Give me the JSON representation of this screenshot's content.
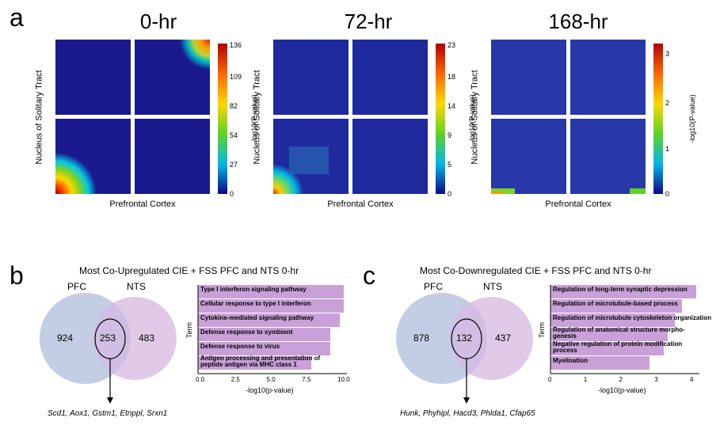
{
  "panel_a": {
    "label": "a",
    "columns": [
      {
        "title": "0-hr",
        "ylabel": "Nucleus of Solitary Tract",
        "xlabel": "Prefrontal Cortex",
        "cbar_label": "-log10(P-value)",
        "cbar_ticks": [
          "0",
          "27",
          "54",
          "82",
          "109",
          "136"
        ],
        "cbar_max": 136
      },
      {
        "title": "72-hr",
        "ylabel": "Nucleus of Solitary Tract",
        "xlabel": "Prefrontal Cortex",
        "cbar_label": "-log10(P-value)",
        "cbar_ticks": [
          "0",
          "5",
          "9",
          "14",
          "18",
          "23"
        ],
        "cbar_max": 23
      },
      {
        "title": "168-hr",
        "ylabel": "Nucleus of Solitary Tract",
        "xlabel": "Prefrontal Cortex",
        "cbar_label": "-log10(P-value)",
        "cbar_ticks": [
          "0",
          "1",
          "2",
          "3"
        ],
        "cbar_max": 3
      }
    ]
  },
  "panel_b": {
    "label": "b",
    "title": "Most Co-Upregulated CIE + FSS PFC and NTS 0-hr",
    "venn": {
      "left_label": "PFC",
      "right_label": "NTS",
      "left_count": "924",
      "overlap_count": "253",
      "right_count": "483",
      "left_color": "#b8c5e0",
      "right_color": "#d5b8e0",
      "genes": "Scd1, Aox1, Gstm1, Etnppl, Srxn1"
    },
    "bars": {
      "xaxis_label": "-log10(p-value)",
      "yaxis_label": "Term",
      "xmax": 10.5,
      "xticks": [
        "0.0",
        "2.5",
        "5.0",
        "7.5",
        "10.0"
      ],
      "items": [
        {
          "label": "Type I interferon signaling pathway",
          "value": 10.3
        },
        {
          "label": "Cellular response to type I interferon",
          "value": 10.3
        },
        {
          "label": "Cytokine-mediated signaling pathway",
          "value": 10.0
        },
        {
          "label": "Defense response to symbiont",
          "value": 9.3
        },
        {
          "label": "Defense response to virus",
          "value": 9.3
        },
        {
          "label": "Antigen processing and presentation of\npeptide antigen via MHC class 1",
          "value": 8.0,
          "multiline": true
        }
      ],
      "bar_color": "#c9a0d8"
    }
  },
  "panel_c": {
    "label": "c",
    "title": "Most Co-Downregulated CIE + FSS PFC and NTS 0-hr",
    "venn": {
      "left_label": "PFC",
      "right_label": "NTS",
      "left_count": "878",
      "overlap_count": "132",
      "right_count": "437",
      "left_color": "#b8c5e0",
      "right_color": "#d5b8e0",
      "genes": "Hunk, Phyhipl, Hacd3, Phlda1, Cfap65"
    },
    "bars": {
      "xaxis_label": "-log10(p-value)",
      "yaxis_label": "Term",
      "xmax": 4.2,
      "xticks": [
        "0",
        "1",
        "2",
        "3",
        "4"
      ],
      "items": [
        {
          "label": "Regulation of long-term synaptic depression",
          "value": 4.1
        },
        {
          "label": "Regulation of microtubule-based process",
          "value": 3.7
        },
        {
          "label": "Regulation of microtubule cytoskeleton organization",
          "value": 3.5
        },
        {
          "label": "Regulation of anatomical structure morpho-\ngenesis",
          "value": 3.3,
          "multiline": true
        },
        {
          "label": "Negative regulation of protein modification\nprocess",
          "value": 3.2,
          "multiline": true
        },
        {
          "label": "Myelination",
          "value": 2.8
        }
      ],
      "bar_color": "#c9a0d8"
    }
  }
}
